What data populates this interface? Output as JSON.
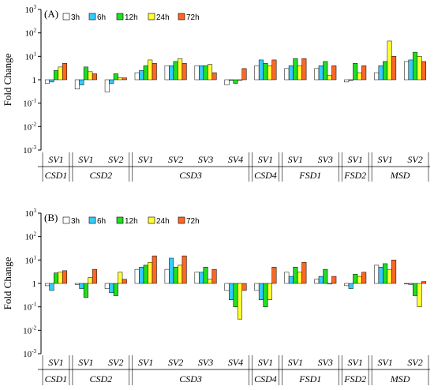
{
  "chart_data": [
    {
      "panel_label": "(A)",
      "type": "bar",
      "ylabel": "Fold Change",
      "yscale": "log",
      "ylim": [
        0.001,
        1000
      ],
      "y_ticks": [
        0.001,
        0.01,
        0.1,
        1,
        10,
        100,
        1000
      ],
      "y_tick_labels": [
        {
          "base": "10",
          "exp": "-3"
        },
        {
          "base": "10",
          "exp": "-2"
        },
        {
          "base": "10",
          "exp": "-1"
        },
        {
          "base": "1",
          "exp": ""
        },
        {
          "base": "10",
          "exp": "1"
        },
        {
          "base": "10",
          "exp": "2"
        },
        {
          "base": "10",
          "exp": "3"
        }
      ],
      "legend": [
        "3h",
        "6h",
        "12h",
        "24h",
        "72h"
      ],
      "colors": [
        "#ffffff",
        "#33ccff",
        "#22dd22",
        "#ffff33",
        "#ff6622"
      ],
      "categories": [
        "SV1",
        "SV1",
        "SV2",
        "SV1",
        "SV2",
        "SV3",
        "SV4",
        "SV1",
        "SV1",
        "SV3",
        "SV1",
        "SV1",
        "SV2"
      ],
      "groups": [
        {
          "name": "CSD1",
          "span": [
            0,
            0
          ]
        },
        {
          "name": "CSD2",
          "span": [
            1,
            2
          ]
        },
        {
          "name": "CSD3",
          "span": [
            3,
            6
          ]
        },
        {
          "name": "CSD4",
          "span": [
            7,
            7
          ]
        },
        {
          "name": "FSD1",
          "span": [
            8,
            9
          ]
        },
        {
          "name": "FSD2",
          "span": [
            10,
            10
          ]
        },
        {
          "name": "MSD",
          "span": [
            11,
            12
          ]
        }
      ],
      "values": [
        [
          0.7,
          0.8,
          2.5,
          3.5,
          5
        ],
        [
          0.4,
          0.6,
          3.5,
          2.2,
          1.8
        ],
        [
          0.3,
          0.7,
          1.8,
          1.2,
          1.2
        ],
        [
          2.0,
          2.5,
          4.0,
          7.0,
          5.0
        ],
        [
          4.0,
          4.0,
          6.0,
          8.0,
          5.0
        ],
        [
          4.0,
          4.0,
          4.0,
          4.5,
          2.0
        ],
        [
          0.6,
          1.0,
          0.7,
          1.0,
          3.0
        ],
        [
          4.0,
          7.0,
          5.0,
          4.0,
          7.0
        ],
        [
          3.0,
          4.0,
          8.0,
          4.0,
          8.0
        ],
        [
          3.0,
          4.0,
          6.0,
          1.5,
          4.0
        ],
        [
          0.8,
          1.0,
          5.0,
          2.0,
          4.0
        ],
        [
          2.0,
          4.0,
          6.0,
          45.0,
          10.0
        ],
        [
          6.0,
          7.0,
          15.0,
          10.0,
          6.0
        ]
      ]
    },
    {
      "panel_label": "(B)",
      "type": "bar",
      "ylabel": "Fold Change",
      "yscale": "log",
      "ylim": [
        0.001,
        1000
      ],
      "y_ticks": [
        0.001,
        0.01,
        0.1,
        1,
        10,
        100,
        1000
      ],
      "y_tick_labels": [
        {
          "base": "10",
          "exp": "-3"
        },
        {
          "base": "10",
          "exp": "-2"
        },
        {
          "base": "10",
          "exp": "-1"
        },
        {
          "base": "1",
          "exp": ""
        },
        {
          "base": "10",
          "exp": "1"
        },
        {
          "base": "10",
          "exp": "2"
        },
        {
          "base": "10",
          "exp": "3"
        }
      ],
      "legend": [
        "3h",
        "6h",
        "12h",
        "24h",
        "72h"
      ],
      "colors": [
        "#ffffff",
        "#33ccff",
        "#22dd22",
        "#ffff33",
        "#ff6622"
      ],
      "categories": [
        "SV1",
        "SV1",
        "SV2",
        "SV1",
        "SV2",
        "SV3",
        "SV4",
        "SV1",
        "SV1",
        "SV3",
        "SV1",
        "SV1",
        "SV2"
      ],
      "groups": [
        {
          "name": "CSD1",
          "span": [
            0,
            0
          ]
        },
        {
          "name": "CSD2",
          "span": [
            1,
            2
          ]
        },
        {
          "name": "CSD3",
          "span": [
            3,
            6
          ]
        },
        {
          "name": "CSD4",
          "span": [
            7,
            7
          ]
        },
        {
          "name": "FSD1",
          "span": [
            8,
            9
          ]
        },
        {
          "name": "FSD2",
          "span": [
            10,
            10
          ]
        },
        {
          "name": "MSD",
          "span": [
            11,
            12
          ]
        }
      ],
      "values": [
        [
          0.8,
          0.5,
          2.8,
          3.0,
          3.5
        ],
        [
          0.9,
          0.6,
          0.25,
          1.8,
          4.0
        ],
        [
          0.6,
          0.4,
          0.3,
          3.0,
          1.5
        ],
        [
          4.0,
          5.0,
          6.0,
          8.0,
          15.0
        ],
        [
          4.0,
          12.0,
          5.0,
          6.0,
          15.0
        ],
        [
          3.0,
          3.0,
          5.0,
          1.5,
          4.0
        ],
        [
          0.5,
          0.2,
          0.1,
          0.03,
          0.5
        ],
        [
          0.5,
          0.2,
          0.1,
          0.2,
          5.0
        ],
        [
          3.0,
          2.0,
          5.0,
          3.0,
          8.0
        ],
        [
          1.5,
          2.0,
          4.0,
          1.0,
          2.0
        ],
        [
          0.8,
          0.6,
          2.5,
          2.0,
          3.0
        ],
        [
          6.0,
          5.0,
          7.0,
          4.0,
          10.0
        ],
        [
          1.0,
          0.9,
          0.3,
          0.1,
          1.2
        ]
      ]
    }
  ]
}
